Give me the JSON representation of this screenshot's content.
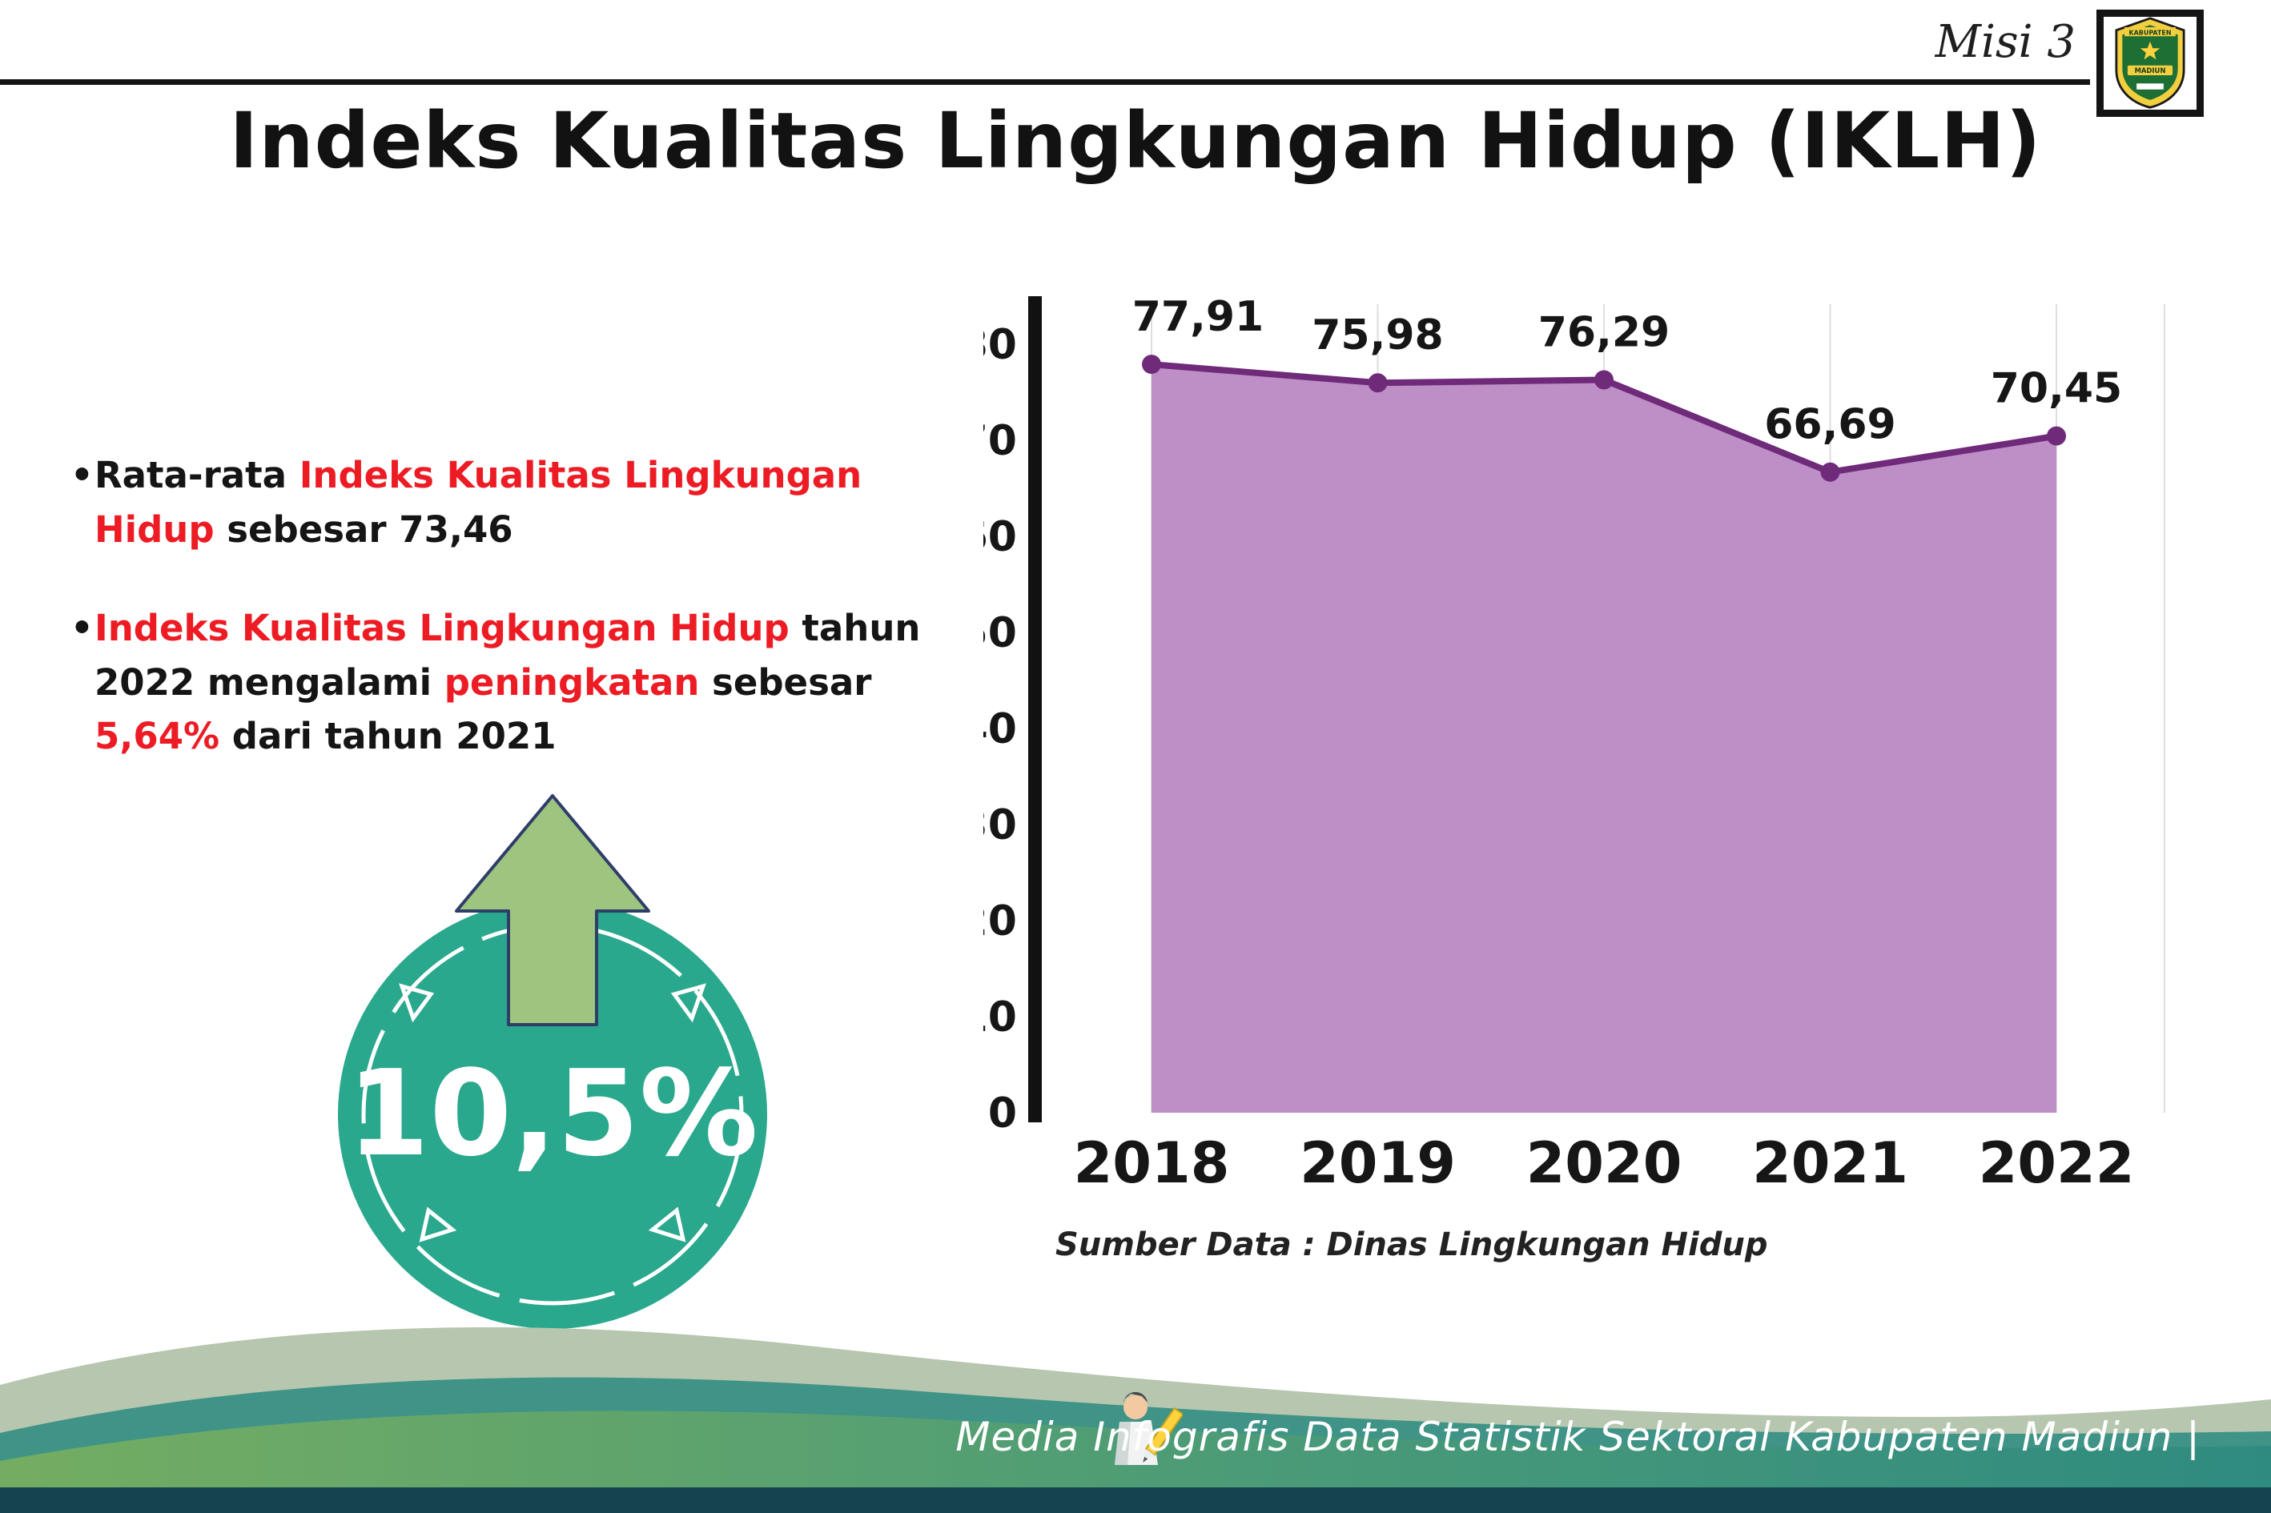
{
  "header": {
    "misi_label": "Misi 3",
    "title": "Indeks Kualitas Lingkungan Hidup (IKLH)"
  },
  "logo": {
    "kabupaten": "KABUPATEN",
    "madiun": "MADIUN"
  },
  "bullets": {
    "marker": "•",
    "bullet1": {
      "pre": "Rata-rata ",
      "highlight": "Indeks Kualitas Lingkungan Hidup",
      "post": " sebesar 73,46"
    },
    "bullet2": {
      "h1": "Indeks Kualitas Lingkungan Hidup",
      "t1": " tahun 2022 mengalami ",
      "h2": "peningkatan",
      "t2": " sebesar ",
      "h3": "5,64%",
      "t3": " dari tahun 2021"
    }
  },
  "badge": {
    "value": "10,5%"
  },
  "chart_data": {
    "type": "area",
    "title": "Indeks Kualitas Lingkungan Hidup (IKLH)",
    "categories": [
      "2018",
      "2019",
      "2020",
      "2021",
      "2022"
    ],
    "values": [
      77.91,
      75.98,
      76.29,
      66.69,
      70.45
    ],
    "point_labels": [
      "77,91",
      "75,98",
      "76,29",
      "66,69",
      "70,45"
    ],
    "xlabel": "",
    "ylabel": "",
    "ylim": [
      0,
      80
    ],
    "ytick_step": 10,
    "grid": "vertical-light",
    "legend": "none",
    "fill_color": "#be8fc6",
    "line_color": "#6f2a7a",
    "source": "Sumber Data : Dinas Lingkungan Hidup"
  },
  "footer": {
    "text": "Media Infografis Data Statistik Sektoral Kabupaten Madiun |"
  },
  "colors": {
    "accent_red": "#ed1c24",
    "badge_teal": "#2aa88d",
    "arrow_green": "#9dc57f",
    "footer_dark": "#15444e"
  }
}
